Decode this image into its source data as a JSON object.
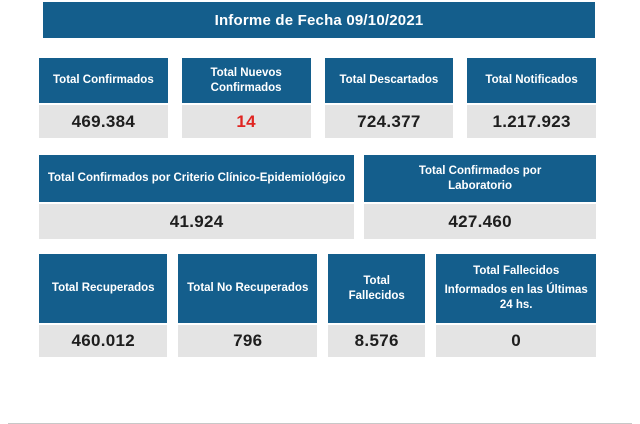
{
  "report": {
    "title": "Informe de Fecha 09/10/2021"
  },
  "colors": {
    "primary_blue": "#145E8C",
    "value_box_gray": "#E4E4E4",
    "value_text": "#1E1E1E",
    "alert_red": "#E02522"
  },
  "stats": {
    "row1": [
      {
        "label": "Total Confirmados",
        "value": "469.384"
      },
      {
        "label": "Total Nuevos Confirmados",
        "value": "14",
        "highlight": true
      },
      {
        "label": "Total Descartados",
        "value": "724.377"
      },
      {
        "label": "Total Notificados",
        "value": "1.217.923"
      }
    ],
    "row2": [
      {
        "label": "Total Confirmados por Criterio Clínico-Epidemiológico",
        "value": "41.924"
      },
      {
        "label": "Total Confirmados por Laboratorio",
        "value": "427.460"
      }
    ],
    "row3": [
      {
        "label": "Total Recuperados",
        "value": "460.012"
      },
      {
        "label": "Total No Recuperados",
        "value": "796"
      },
      {
        "label": "Total Fallecidos",
        "value": "8.576"
      },
      {
        "label": "Total Fallecidos",
        "label2": "Informados en las Últimas 24 hs.",
        "value": "0"
      }
    ]
  }
}
